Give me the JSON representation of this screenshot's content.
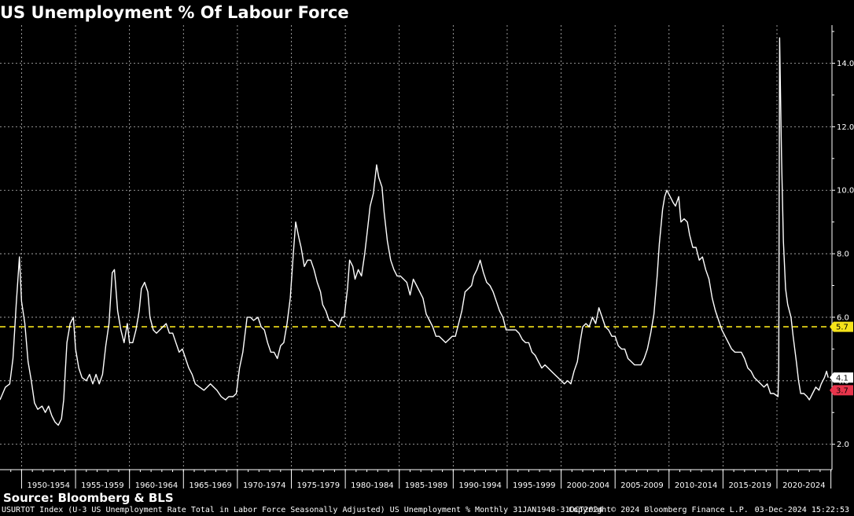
{
  "header": {
    "title": "US Unemployment % Of Labour Force"
  },
  "footer": {
    "source": "Source: Bloomberg & BLS",
    "description": "USURTOT Index (U-3 US Unemployment Rate Total in Labor Force Seasonally Adjusted) US Unemployment %  Monthly 31JAN1948-31OCT2024",
    "copyright": "Copyright© 2024 Bloomberg Finance L.P.",
    "timestamp": "03-Dec-2024 15:22:53"
  },
  "colors": {
    "background": "#000000",
    "line": "#ffffff",
    "average": "#f5e31a",
    "min_badge": "#e8354c",
    "grid": "#bdbdbd"
  },
  "chart_data": {
    "type": "line",
    "title": "US Unemployment % Of Labour Force",
    "xlim": [
      1948.0,
      2025.1
    ],
    "ylim": [
      1.2,
      15.2
    ],
    "y_ticks": [
      2.0,
      4.0,
      6.0,
      8.0,
      10.0,
      12.0,
      14.0
    ],
    "y_tick_labels": [
      "2.0",
      "4.0",
      "6.0",
      "8.0",
      "10.0",
      "12.0",
      "14.0"
    ],
    "x_categories": [
      "1950-1954",
      "1955-1959",
      "1960-1964",
      "1965-1969",
      "1970-1974",
      "1975-1979",
      "1980-1984",
      "1985-1989",
      "1990-1994",
      "1995-1999",
      "2000-2004",
      "2005-2009",
      "2010-2014",
      "2015-2019",
      "2020-2024"
    ],
    "x_category_starts": [
      1950,
      1955,
      1960,
      1965,
      1970,
      1975,
      1980,
      1985,
      1990,
      1995,
      2000,
      2005,
      2010,
      2015,
      2020
    ],
    "grid": true,
    "average": {
      "value": 5.7,
      "label": "5.7"
    },
    "last_value": {
      "value": 4.1,
      "label": "4.1"
    },
    "min_marker": {
      "value": 3.7,
      "label": "3.7"
    },
    "series": [
      {
        "values": [
          [
            1948.0,
            3.4
          ],
          [
            1948.5,
            3.8
          ],
          [
            1948.9,
            3.9
          ],
          [
            1949.2,
            4.7
          ],
          [
            1949.5,
            6.4
          ],
          [
            1949.8,
            7.9
          ],
          [
            1950.0,
            6.5
          ],
          [
            1950.3,
            5.8
          ],
          [
            1950.6,
            4.6
          ],
          [
            1950.9,
            4.0
          ],
          [
            1951.2,
            3.3
          ],
          [
            1951.5,
            3.1
          ],
          [
            1951.9,
            3.2
          ],
          [
            1952.2,
            3.0
          ],
          [
            1952.5,
            3.2
          ],
          [
            1952.8,
            2.9
          ],
          [
            1953.1,
            2.7
          ],
          [
            1953.4,
            2.6
          ],
          [
            1953.7,
            2.8
          ],
          [
            1953.9,
            3.4
          ],
          [
            1954.2,
            5.2
          ],
          [
            1954.5,
            5.8
          ],
          [
            1954.8,
            6.0
          ],
          [
            1955.0,
            5.0
          ],
          [
            1955.3,
            4.4
          ],
          [
            1955.6,
            4.1
          ],
          [
            1956.0,
            4.0
          ],
          [
            1956.3,
            4.2
          ],
          [
            1956.6,
            3.9
          ],
          [
            1956.9,
            4.2
          ],
          [
            1957.2,
            3.9
          ],
          [
            1957.5,
            4.2
          ],
          [
            1957.8,
            5.1
          ],
          [
            1958.1,
            5.8
          ],
          [
            1958.4,
            7.4
          ],
          [
            1958.6,
            7.5
          ],
          [
            1958.9,
            6.2
          ],
          [
            1959.2,
            5.6
          ],
          [
            1959.5,
            5.2
          ],
          [
            1959.8,
            5.8
          ],
          [
            1960.0,
            5.2
          ],
          [
            1960.3,
            5.2
          ],
          [
            1960.6,
            5.6
          ],
          [
            1960.9,
            6.2
          ],
          [
            1961.1,
            6.9
          ],
          [
            1961.4,
            7.1
          ],
          [
            1961.7,
            6.8
          ],
          [
            1961.9,
            6.0
          ],
          [
            1962.2,
            5.6
          ],
          [
            1962.5,
            5.5
          ],
          [
            1962.8,
            5.6
          ],
          [
            1963.1,
            5.7
          ],
          [
            1963.4,
            5.8
          ],
          [
            1963.7,
            5.5
          ],
          [
            1964.0,
            5.5
          ],
          [
            1964.3,
            5.2
          ],
          [
            1964.6,
            4.9
          ],
          [
            1964.9,
            5.0
          ],
          [
            1965.2,
            4.7
          ],
          [
            1965.5,
            4.4
          ],
          [
            1965.8,
            4.2
          ],
          [
            1966.1,
            3.9
          ],
          [
            1966.5,
            3.8
          ],
          [
            1966.9,
            3.7
          ],
          [
            1967.2,
            3.8
          ],
          [
            1967.5,
            3.9
          ],
          [
            1967.8,
            3.8
          ],
          [
            1968.1,
            3.7
          ],
          [
            1968.5,
            3.5
          ],
          [
            1968.9,
            3.4
          ],
          [
            1969.2,
            3.5
          ],
          [
            1969.6,
            3.5
          ],
          [
            1969.9,
            3.6
          ],
          [
            1970.2,
            4.4
          ],
          [
            1970.5,
            4.9
          ],
          [
            1970.9,
            6.0
          ],
          [
            1971.2,
            6.0
          ],
          [
            1971.5,
            5.9
          ],
          [
            1971.9,
            6.0
          ],
          [
            1972.2,
            5.7
          ],
          [
            1972.5,
            5.6
          ],
          [
            1972.8,
            5.2
          ],
          [
            1973.1,
            4.9
          ],
          [
            1973.4,
            4.9
          ],
          [
            1973.7,
            4.7
          ],
          [
            1974.0,
            5.1
          ],
          [
            1974.3,
            5.2
          ],
          [
            1974.6,
            5.8
          ],
          [
            1974.9,
            6.6
          ],
          [
            1975.2,
            8.1
          ],
          [
            1975.4,
            9.0
          ],
          [
            1975.7,
            8.5
          ],
          [
            1975.9,
            8.2
          ],
          [
            1976.2,
            7.6
          ],
          [
            1976.5,
            7.8
          ],
          [
            1976.8,
            7.8
          ],
          [
            1977.1,
            7.5
          ],
          [
            1977.4,
            7.1
          ],
          [
            1977.7,
            6.8
          ],
          [
            1977.9,
            6.4
          ],
          [
            1978.2,
            6.2
          ],
          [
            1978.5,
            5.9
          ],
          [
            1978.8,
            5.9
          ],
          [
            1979.1,
            5.8
          ],
          [
            1979.4,
            5.7
          ],
          [
            1979.7,
            6.0
          ],
          [
            1979.9,
            6.0
          ],
          [
            1980.2,
            6.9
          ],
          [
            1980.4,
            7.8
          ],
          [
            1980.7,
            7.6
          ],
          [
            1980.9,
            7.2
          ],
          [
            1981.2,
            7.5
          ],
          [
            1981.5,
            7.3
          ],
          [
            1981.8,
            8.0
          ],
          [
            1982.0,
            8.6
          ],
          [
            1982.3,
            9.5
          ],
          [
            1982.6,
            9.9
          ],
          [
            1982.9,
            10.8
          ],
          [
            1983.1,
            10.4
          ],
          [
            1983.4,
            10.1
          ],
          [
            1983.6,
            9.3
          ],
          [
            1983.9,
            8.4
          ],
          [
            1984.2,
            7.8
          ],
          [
            1984.5,
            7.5
          ],
          [
            1984.8,
            7.3
          ],
          [
            1985.1,
            7.3
          ],
          [
            1985.4,
            7.2
          ],
          [
            1985.7,
            7.1
          ],
          [
            1986.0,
            6.7
          ],
          [
            1986.3,
            7.2
          ],
          [
            1986.6,
            7.0
          ],
          [
            1986.9,
            6.8
          ],
          [
            1987.2,
            6.6
          ],
          [
            1987.5,
            6.1
          ],
          [
            1987.8,
            5.9
          ],
          [
            1988.1,
            5.7
          ],
          [
            1988.4,
            5.4
          ],
          [
            1988.7,
            5.4
          ],
          [
            1989.0,
            5.3
          ],
          [
            1989.3,
            5.2
          ],
          [
            1989.6,
            5.3
          ],
          [
            1989.9,
            5.4
          ],
          [
            1990.2,
            5.4
          ],
          [
            1990.5,
            5.8
          ],
          [
            1990.8,
            6.2
          ],
          [
            1991.1,
            6.8
          ],
          [
            1991.4,
            6.9
          ],
          [
            1991.7,
            7.0
          ],
          [
            1991.9,
            7.3
          ],
          [
            1992.2,
            7.5
          ],
          [
            1992.5,
            7.8
          ],
          [
            1992.8,
            7.4
          ],
          [
            1993.1,
            7.1
          ],
          [
            1993.4,
            7.0
          ],
          [
            1993.7,
            6.8
          ],
          [
            1994.0,
            6.5
          ],
          [
            1994.3,
            6.2
          ],
          [
            1994.6,
            6.0
          ],
          [
            1994.9,
            5.6
          ],
          [
            1995.2,
            5.6
          ],
          [
            1995.5,
            5.6
          ],
          [
            1995.8,
            5.6
          ],
          [
            1996.1,
            5.5
          ],
          [
            1996.4,
            5.3
          ],
          [
            1996.7,
            5.2
          ],
          [
            1997.0,
            5.2
          ],
          [
            1997.3,
            4.9
          ],
          [
            1997.6,
            4.8
          ],
          [
            1997.9,
            4.6
          ],
          [
            1998.2,
            4.4
          ],
          [
            1998.5,
            4.5
          ],
          [
            1998.8,
            4.4
          ],
          [
            1999.1,
            4.3
          ],
          [
            1999.4,
            4.2
          ],
          [
            1999.7,
            4.1
          ],
          [
            2000.0,
            4.0
          ],
          [
            2000.3,
            3.9
          ],
          [
            2000.6,
            4.0
          ],
          [
            2000.9,
            3.9
          ],
          [
            2001.2,
            4.3
          ],
          [
            2001.5,
            4.6
          ],
          [
            2001.8,
            5.3
          ],
          [
            2002.0,
            5.7
          ],
          [
            2002.3,
            5.8
          ],
          [
            2002.6,
            5.7
          ],
          [
            2002.9,
            6.0
          ],
          [
            2003.2,
            5.8
          ],
          [
            2003.5,
            6.3
          ],
          [
            2003.8,
            6.0
          ],
          [
            2004.1,
            5.7
          ],
          [
            2004.4,
            5.6
          ],
          [
            2004.7,
            5.4
          ],
          [
            2005.0,
            5.4
          ],
          [
            2005.3,
            5.1
          ],
          [
            2005.6,
            5.0
          ],
          [
            2005.9,
            5.0
          ],
          [
            2006.2,
            4.7
          ],
          [
            2006.5,
            4.6
          ],
          [
            2006.8,
            4.5
          ],
          [
            2007.1,
            4.5
          ],
          [
            2007.4,
            4.5
          ],
          [
            2007.7,
            4.7
          ],
          [
            2008.0,
            5.0
          ],
          [
            2008.3,
            5.5
          ],
          [
            2008.6,
            6.1
          ],
          [
            2008.9,
            7.3
          ],
          [
            2009.1,
            8.3
          ],
          [
            2009.4,
            9.4
          ],
          [
            2009.6,
            9.8
          ],
          [
            2009.8,
            10.0
          ],
          [
            2010.1,
            9.8
          ],
          [
            2010.4,
            9.6
          ],
          [
            2010.6,
            9.5
          ],
          [
            2010.9,
            9.8
          ],
          [
            2011.1,
            9.0
          ],
          [
            2011.4,
            9.1
          ],
          [
            2011.7,
            9.0
          ],
          [
            2011.9,
            8.6
          ],
          [
            2012.2,
            8.2
          ],
          [
            2012.5,
            8.2
          ],
          [
            2012.8,
            7.8
          ],
          [
            2013.1,
            7.9
          ],
          [
            2013.4,
            7.5
          ],
          [
            2013.7,
            7.2
          ],
          [
            2014.0,
            6.6
          ],
          [
            2014.3,
            6.2
          ],
          [
            2014.6,
            5.9
          ],
          [
            2014.9,
            5.6
          ],
          [
            2015.2,
            5.4
          ],
          [
            2015.5,
            5.2
          ],
          [
            2015.8,
            5.0
          ],
          [
            2016.1,
            4.9
          ],
          [
            2016.4,
            4.9
          ],
          [
            2016.7,
            4.9
          ],
          [
            2017.0,
            4.7
          ],
          [
            2017.3,
            4.4
          ],
          [
            2017.6,
            4.3
          ],
          [
            2017.9,
            4.1
          ],
          [
            2018.2,
            4.0
          ],
          [
            2018.5,
            3.9
          ],
          [
            2018.8,
            3.8
          ],
          [
            2019.1,
            3.9
          ],
          [
            2019.4,
            3.6
          ],
          [
            2019.7,
            3.6
          ],
          [
            2020.1,
            3.5
          ],
          [
            2020.17,
            4.4
          ],
          [
            2020.25,
            14.8
          ],
          [
            2020.42,
            11.1
          ],
          [
            2020.6,
            8.4
          ],
          [
            2020.8,
            6.9
          ],
          [
            2021.0,
            6.4
          ],
          [
            2021.3,
            6.0
          ],
          [
            2021.5,
            5.4
          ],
          [
            2021.8,
            4.6
          ],
          [
            2022.0,
            4.0
          ],
          [
            2022.2,
            3.6
          ],
          [
            2022.5,
            3.6
          ],
          [
            2022.8,
            3.5
          ],
          [
            2023.0,
            3.4
          ],
          [
            2023.3,
            3.6
          ],
          [
            2023.6,
            3.8
          ],
          [
            2023.9,
            3.7
          ],
          [
            2024.1,
            3.9
          ],
          [
            2024.4,
            4.1
          ],
          [
            2024.6,
            4.3
          ],
          [
            2024.75,
            4.1
          ]
        ]
      }
    ]
  }
}
